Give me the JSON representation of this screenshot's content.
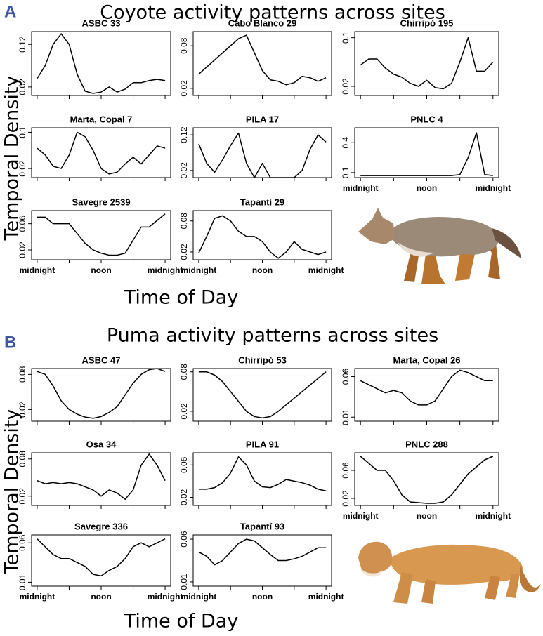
{
  "panels": [
    {
      "label": "A",
      "title": "Coyote activity patterns across sites",
      "y_label": "Temporal Density",
      "x_label": "Time of Day"
    },
    {
      "label": "B",
      "title": "Puma activity patterns across sites",
      "y_label": "Temporal Density",
      "x_label": "Time of Day"
    }
  ],
  "chart_data": [
    {
      "type": "line",
      "title": "ASBC 33",
      "color": "#000000",
      "xlim": [
        0,
        24
      ],
      "ylim": [
        0,
        0.15
      ],
      "yticks": [
        0.02,
        0.12
      ],
      "xticks": [
        0,
        6,
        12,
        18,
        24
      ],
      "x": [
        0,
        1.5,
        3,
        4.5,
        6,
        7.5,
        9,
        10.5,
        12,
        13.5,
        15,
        16.5,
        18,
        19.5,
        21,
        22.5,
        24
      ],
      "values": [
        0.04,
        0.07,
        0.12,
        0.145,
        0.12,
        0.05,
        0.01,
        0.005,
        0.008,
        0.02,
        0.008,
        0.015,
        0.03,
        0.03,
        0.035,
        0.038,
        0.035
      ]
    },
    {
      "type": "line",
      "title": "Cabo Blanco 29",
      "color": "#000000",
      "xlim": [
        0,
        24
      ],
      "ylim": [
        0.01,
        0.1
      ],
      "yticks": [
        0.02,
        0.08
      ],
      "xticks": [
        0,
        6,
        12,
        18,
        24
      ],
      "x": [
        0,
        1.5,
        3,
        4.5,
        6,
        7.5,
        9,
        10.5,
        12,
        13.5,
        15,
        16.5,
        18,
        19.5,
        21,
        22.5,
        24
      ],
      "values": [
        0.04,
        0.05,
        0.06,
        0.07,
        0.08,
        0.09,
        0.095,
        0.07,
        0.045,
        0.032,
        0.03,
        0.025,
        0.028,
        0.037,
        0.035,
        0.03,
        0.035
      ]
    },
    {
      "type": "line",
      "title": "Chirripó 195",
      "color": "#000000",
      "xlim": [
        0,
        24
      ],
      "ylim": [
        0.005,
        0.11
      ],
      "yticks": [
        0.02,
        0.1
      ],
      "xticks": [
        0,
        6,
        12,
        18,
        24
      ],
      "x": [
        0,
        1.5,
        3,
        4.5,
        6,
        7.5,
        9,
        10.5,
        12,
        13.5,
        15,
        16.5,
        18,
        19.5,
        21,
        22.5,
        24
      ],
      "values": [
        0.055,
        0.065,
        0.065,
        0.05,
        0.04,
        0.035,
        0.025,
        0.02,
        0.03,
        0.018,
        0.016,
        0.025,
        0.06,
        0.1,
        0.045,
        0.045,
        0.06
      ]
    },
    {
      "type": "line",
      "title": "Marta, Copal 7",
      "color": "#000000",
      "xlim": [
        0,
        24
      ],
      "ylim": [
        0,
        0.11
      ],
      "yticks": [
        0.02,
        0.1
      ],
      "xticks": [
        0,
        6,
        12,
        18,
        24
      ],
      "x": [
        0,
        1.5,
        3,
        4.5,
        6,
        7.5,
        9,
        10.5,
        12,
        13.5,
        15,
        16.5,
        18,
        19.5,
        21,
        22.5,
        24
      ],
      "values": [
        0.065,
        0.05,
        0.025,
        0.02,
        0.05,
        0.1,
        0.09,
        0.06,
        0.02,
        0.008,
        0.012,
        0.03,
        0.045,
        0.03,
        0.05,
        0.07,
        0.065
      ]
    },
    {
      "type": "line",
      "title": "PILA 17",
      "color": "#000000",
      "xlim": [
        0,
        24
      ],
      "ylim": [
        0,
        0.14
      ],
      "yticks": [
        0.02,
        0.12
      ],
      "xticks": [
        0,
        6,
        12,
        18,
        24
      ],
      "x": [
        0,
        1.5,
        3,
        4.5,
        6,
        7.5,
        9,
        10.5,
        12,
        13.5,
        15,
        16.5,
        18,
        19.5,
        21,
        22.5,
        24
      ],
      "values": [
        0.095,
        0.04,
        0.015,
        0.05,
        0.09,
        0.125,
        0.04,
        0.0,
        0.04,
        0.0,
        0.0,
        0.0,
        0.0,
        0.02,
        0.08,
        0.12,
        0.1
      ]
    },
    {
      "type": "line",
      "title": "PNLC 4",
      "color": "#000000",
      "xlim": [
        0,
        24
      ],
      "ylim": [
        0.05,
        0.55
      ],
      "yticks": [
        0.1,
        0.4
      ],
      "xticks": [
        {
          "value": 0,
          "label": "midnight"
        },
        6,
        {
          "value": 12,
          "label": "noon"
        },
        18,
        {
          "value": 24,
          "label": "midnight"
        }
      ],
      "x": [
        0,
        1.5,
        3,
        4.5,
        6,
        7.5,
        9,
        10.5,
        12,
        13.5,
        15,
        16.5,
        18,
        19.5,
        21,
        22.5,
        24
      ],
      "values": [
        0.07,
        0.07,
        0.07,
        0.07,
        0.07,
        0.07,
        0.07,
        0.07,
        0.07,
        0.07,
        0.07,
        0.07,
        0.08,
        0.25,
        0.5,
        0.08,
        0.07
      ]
    },
    {
      "type": "line",
      "title": "Savegre 2539",
      "color": "#000000",
      "xlim": [
        0,
        24
      ],
      "ylim": [
        0.005,
        0.08
      ],
      "yticks": [
        0.02,
        0.06
      ],
      "xticks": [
        {
          "value": 0,
          "label": "midnight"
        },
        6,
        {
          "value": 12,
          "label": "noon"
        },
        18,
        {
          "value": 24,
          "label": "midnight"
        }
      ],
      "x": [
        0,
        1.5,
        3,
        4.5,
        6,
        7.5,
        9,
        10.5,
        12,
        13.5,
        15,
        16.5,
        18,
        19.5,
        21,
        22.5,
        24
      ],
      "values": [
        0.07,
        0.07,
        0.06,
        0.06,
        0.06,
        0.045,
        0.03,
        0.02,
        0.015,
        0.012,
        0.012,
        0.015,
        0.035,
        0.055,
        0.055,
        0.065,
        0.075
      ]
    },
    {
      "type": "line",
      "title": "Tapantí 29",
      "color": "#000000",
      "xlim": [
        0,
        24
      ],
      "ylim": [
        0.005,
        0.1
      ],
      "yticks": [
        0.02,
        0.08
      ],
      "xticks": [
        {
          "value": 0,
          "label": "midnight"
        },
        6,
        {
          "value": 12,
          "label": "noon"
        },
        18,
        {
          "value": 24,
          "label": "midnight"
        }
      ],
      "x": [
        0,
        1.5,
        3,
        4.5,
        6,
        7.5,
        9,
        10.5,
        12,
        13.5,
        15,
        16.5,
        18,
        19.5,
        21,
        22.5,
        24
      ],
      "values": [
        0.018,
        0.05,
        0.085,
        0.09,
        0.08,
        0.06,
        0.05,
        0.05,
        0.04,
        0.02,
        0.008,
        0.02,
        0.04,
        0.025,
        0.02,
        0.015,
        0.02
      ]
    },
    {
      "type": "line",
      "title": "ASBC 47",
      "color": "#000000",
      "xlim": [
        0,
        24
      ],
      "ylim": [
        0,
        0.09
      ],
      "yticks": [
        0.02,
        0.08
      ],
      "xticks": [
        0,
        6,
        12,
        18,
        24
      ],
      "x": [
        0,
        1.5,
        3,
        4.5,
        6,
        7.5,
        9,
        10.5,
        12,
        13.5,
        15,
        16.5,
        18,
        19.5,
        21,
        22.5,
        24
      ],
      "values": [
        0.085,
        0.08,
        0.06,
        0.035,
        0.02,
        0.012,
        0.007,
        0.005,
        0.008,
        0.015,
        0.025,
        0.045,
        0.065,
        0.08,
        0.088,
        0.09,
        0.085
      ]
    },
    {
      "type": "line",
      "title": "Chirripó 53",
      "color": "#000000",
      "xlim": [
        0,
        24
      ],
      "ylim": [
        0.005,
        0.085
      ],
      "yticks": [
        0.02,
        0.08
      ],
      "xticks": [
        0,
        6,
        12,
        18,
        24
      ],
      "x": [
        0,
        1.5,
        3,
        4.5,
        6,
        7.5,
        9,
        10.5,
        12,
        13.5,
        15,
        16.5,
        18,
        19.5,
        21,
        22.5,
        24
      ],
      "values": [
        0.08,
        0.08,
        0.075,
        0.065,
        0.05,
        0.035,
        0.02,
        0.012,
        0.01,
        0.012,
        0.02,
        0.03,
        0.04,
        0.05,
        0.06,
        0.07,
        0.08
      ]
    },
    {
      "type": "line",
      "title": "Marta, Copal 26",
      "color": "#000000",
      "xlim": [
        0,
        24
      ],
      "ylim": [
        0.005,
        0.07
      ],
      "yticks": [
        0.01,
        0.06
      ],
      "xticks": [
        0,
        6,
        12,
        18,
        24
      ],
      "x": [
        0,
        1.5,
        3,
        4.5,
        6,
        7.5,
        9,
        10.5,
        12,
        13.5,
        15,
        16.5,
        18,
        19.5,
        21,
        22.5,
        24
      ],
      "values": [
        0.055,
        0.05,
        0.045,
        0.04,
        0.043,
        0.04,
        0.03,
        0.025,
        0.025,
        0.03,
        0.045,
        0.06,
        0.068,
        0.065,
        0.06,
        0.055,
        0.055
      ]
    },
    {
      "type": "line",
      "title": "Osa 34",
      "color": "#000000",
      "xlim": [
        0,
        24
      ],
      "ylim": [
        0.005,
        0.09
      ],
      "yticks": [
        0.02,
        0.08
      ],
      "xticks": [
        0,
        6,
        12,
        18,
        24
      ],
      "x": [
        0,
        1.5,
        3,
        4.5,
        6,
        7.5,
        9,
        10.5,
        12,
        13.5,
        15,
        16.5,
        18,
        19.5,
        21,
        22.5,
        24
      ],
      "values": [
        0.045,
        0.04,
        0.042,
        0.04,
        0.042,
        0.04,
        0.035,
        0.03,
        0.02,
        0.03,
        0.025,
        0.015,
        0.03,
        0.07,
        0.088,
        0.07,
        0.045
      ]
    },
    {
      "type": "line",
      "title": "PILA 91",
      "color": "#000000",
      "xlim": [
        0,
        24
      ],
      "ylim": [
        0.01,
        0.075
      ],
      "yticks": [
        0.02,
        0.06
      ],
      "xticks": [
        0,
        6,
        12,
        18,
        24
      ],
      "x": [
        0,
        1.5,
        3,
        4.5,
        6,
        7.5,
        9,
        10.5,
        12,
        13.5,
        15,
        16.5,
        18,
        19.5,
        21,
        22.5,
        24
      ],
      "values": [
        0.03,
        0.03,
        0.032,
        0.038,
        0.05,
        0.07,
        0.06,
        0.04,
        0.033,
        0.032,
        0.036,
        0.042,
        0.04,
        0.038,
        0.035,
        0.03,
        0.028
      ]
    },
    {
      "type": "line",
      "title": "PNLC 288",
      "color": "#000000",
      "xlim": [
        0,
        24
      ],
      "ylim": [
        0.01,
        0.085
      ],
      "yticks": [
        0.02,
        0.06
      ],
      "xticks": [
        {
          "value": 0,
          "label": "midnight"
        },
        6,
        {
          "value": 12,
          "label": "noon"
        },
        18,
        {
          "value": 24,
          "label": "midnight"
        }
      ],
      "x": [
        0,
        1.5,
        3,
        4.5,
        6,
        7.5,
        9,
        10.5,
        12,
        13.5,
        15,
        16.5,
        18,
        19.5,
        21,
        22.5,
        24
      ],
      "values": [
        0.08,
        0.07,
        0.06,
        0.06,
        0.045,
        0.025,
        0.015,
        0.014,
        0.013,
        0.013,
        0.015,
        0.025,
        0.04,
        0.055,
        0.065,
        0.075,
        0.08
      ]
    },
    {
      "type": "line",
      "title": "Savegre 336",
      "color": "#000000",
      "xlim": [
        0,
        24
      ],
      "ylim": [
        0.005,
        0.07
      ],
      "yticks": [
        0.01,
        0.06
      ],
      "xticks": [
        {
          "value": 0,
          "label": "midnight"
        },
        6,
        {
          "value": 12,
          "label": "noon"
        },
        18,
        {
          "value": 24,
          "label": "midnight"
        }
      ],
      "x": [
        0,
        1.5,
        3,
        4.5,
        6,
        7.5,
        9,
        10.5,
        12,
        13.5,
        15,
        16.5,
        18,
        19.5,
        21,
        22.5,
        24
      ],
      "values": [
        0.065,
        0.055,
        0.045,
        0.04,
        0.04,
        0.035,
        0.03,
        0.02,
        0.018,
        0.025,
        0.03,
        0.04,
        0.055,
        0.06,
        0.055,
        0.06,
        0.065
      ]
    },
    {
      "type": "line",
      "title": "Tapantí 93",
      "color": "#000000",
      "xlim": [
        0,
        24
      ],
      "ylim": [
        0.005,
        0.065
      ],
      "yticks": [
        0.01,
        0.06
      ],
      "xticks": [
        {
          "value": 0,
          "label": "midnight"
        },
        6,
        {
          "value": 12,
          "label": "noon"
        },
        18,
        {
          "value": 24,
          "label": "midnight"
        }
      ],
      "x": [
        0,
        1.5,
        3,
        4.5,
        6,
        7.5,
        9,
        10.5,
        12,
        13.5,
        15,
        16.5,
        18,
        19.5,
        21,
        22.5,
        24
      ],
      "values": [
        0.045,
        0.04,
        0.03,
        0.035,
        0.045,
        0.055,
        0.06,
        0.058,
        0.05,
        0.042,
        0.035,
        0.035,
        0.037,
        0.04,
        0.045,
        0.05,
        0.05
      ]
    }
  ]
}
